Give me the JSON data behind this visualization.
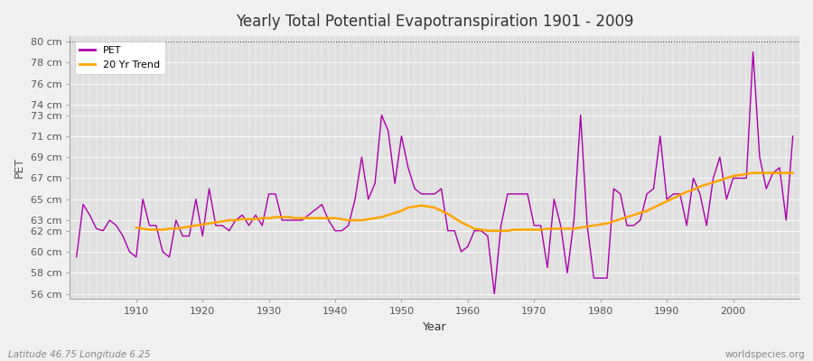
{
  "title": "Yearly Total Potential Evapotranspiration 1901 - 2009",
  "xlabel": "Year",
  "ylabel": "PET",
  "subtitle": "Latitude 46.75 Longitude 6.25",
  "watermark": "worldspecies.org",
  "fig_bg_color": "#f0f0f0",
  "plot_bg_color": "#e0e0e0",
  "pet_color": "#aa00aa",
  "trend_color": "#ffa500",
  "ylim": [
    55.5,
    80.5
  ],
  "yticks": [
    56,
    58,
    60,
    62,
    63,
    65,
    67,
    69,
    71,
    73,
    74,
    76,
    78,
    80
  ],
  "xlim": [
    1900,
    2010
  ],
  "years": [
    1901,
    1902,
    1903,
    1904,
    1905,
    1906,
    1907,
    1908,
    1909,
    1910,
    1911,
    1912,
    1913,
    1914,
    1915,
    1916,
    1917,
    1918,
    1919,
    1920,
    1921,
    1922,
    1923,
    1924,
    1925,
    1926,
    1927,
    1928,
    1929,
    1930,
    1931,
    1932,
    1933,
    1934,
    1935,
    1936,
    1937,
    1938,
    1939,
    1940,
    1941,
    1942,
    1943,
    1944,
    1945,
    1946,
    1947,
    1948,
    1949,
    1950,
    1951,
    1952,
    1953,
    1954,
    1955,
    1956,
    1957,
    1958,
    1959,
    1960,
    1961,
    1962,
    1963,
    1964,
    1965,
    1966,
    1967,
    1968,
    1969,
    1970,
    1971,
    1972,
    1973,
    1974,
    1975,
    1976,
    1977,
    1978,
    1979,
    1980,
    1981,
    1982,
    1983,
    1984,
    1985,
    1986,
    1987,
    1988,
    1989,
    1990,
    1991,
    1992,
    1993,
    1994,
    1995,
    1996,
    1997,
    1998,
    1999,
    2000,
    2001,
    2002,
    2003,
    2004,
    2005,
    2006,
    2007,
    2008,
    2009
  ],
  "pet_values": [
    59.5,
    64.5,
    63.5,
    62.2,
    62.0,
    63.0,
    62.5,
    61.5,
    60.0,
    59.5,
    65.0,
    62.5,
    62.5,
    60.0,
    59.5,
    63.0,
    61.5,
    61.5,
    65.0,
    61.5,
    66.0,
    62.5,
    62.5,
    62.0,
    63.0,
    63.5,
    62.5,
    63.5,
    62.5,
    65.5,
    65.5,
    63.0,
    63.0,
    63.0,
    63.0,
    63.5,
    64.0,
    64.5,
    63.0,
    62.0,
    62.0,
    62.5,
    65.0,
    69.0,
    65.0,
    66.5,
    73.0,
    71.5,
    66.5,
    71.0,
    68.0,
    66.0,
    65.5,
    65.5,
    65.5,
    66.0,
    62.0,
    62.0,
    60.0,
    60.5,
    62.0,
    62.0,
    61.5,
    56.0,
    62.5,
    65.5,
    65.5,
    65.5,
    65.5,
    62.5,
    62.5,
    58.5,
    65.0,
    62.5,
    58.0,
    63.0,
    73.0,
    62.5,
    57.5,
    57.5,
    57.5,
    66.0,
    65.5,
    62.5,
    62.5,
    63.0,
    65.5,
    66.0,
    71.0,
    65.0,
    65.5,
    65.5,
    62.5,
    67.0,
    65.5,
    62.5,
    67.0,
    69.0,
    65.0,
    67.0,
    67.0,
    67.0,
    79.0,
    69.0,
    66.0,
    67.5,
    68.0,
    63.0,
    71.0
  ],
  "trend_values": [
    null,
    null,
    null,
    null,
    null,
    null,
    null,
    null,
    null,
    62.3,
    62.2,
    62.1,
    62.1,
    62.1,
    62.2,
    62.2,
    62.3,
    62.4,
    62.5,
    62.6,
    62.7,
    62.8,
    62.9,
    63.0,
    63.0,
    63.1,
    63.1,
    63.1,
    63.2,
    63.2,
    63.3,
    63.3,
    63.3,
    63.2,
    63.2,
    63.2,
    63.2,
    63.2,
    63.2,
    63.2,
    63.1,
    63.0,
    63.0,
    63.0,
    63.1,
    63.2,
    63.3,
    63.5,
    63.7,
    63.9,
    64.2,
    64.3,
    64.4,
    64.3,
    64.2,
    63.9,
    63.6,
    63.2,
    62.8,
    62.5,
    62.2,
    62.1,
    62.0,
    62.0,
    62.0,
    62.0,
    62.1,
    62.1,
    62.1,
    62.1,
    62.1,
    62.2,
    62.2,
    62.2,
    62.2,
    62.2,
    62.3,
    62.4,
    62.5,
    62.6,
    62.7,
    62.9,
    63.1,
    63.3,
    63.5,
    63.7,
    63.9,
    64.2,
    64.5,
    64.8,
    65.1,
    65.4,
    65.7,
    65.9,
    66.2,
    66.4,
    66.6,
    66.8,
    67.0,
    67.2,
    67.3,
    67.4,
    67.5,
    67.5,
    67.5,
    67.5,
    67.5,
    67.5,
    67.5
  ]
}
